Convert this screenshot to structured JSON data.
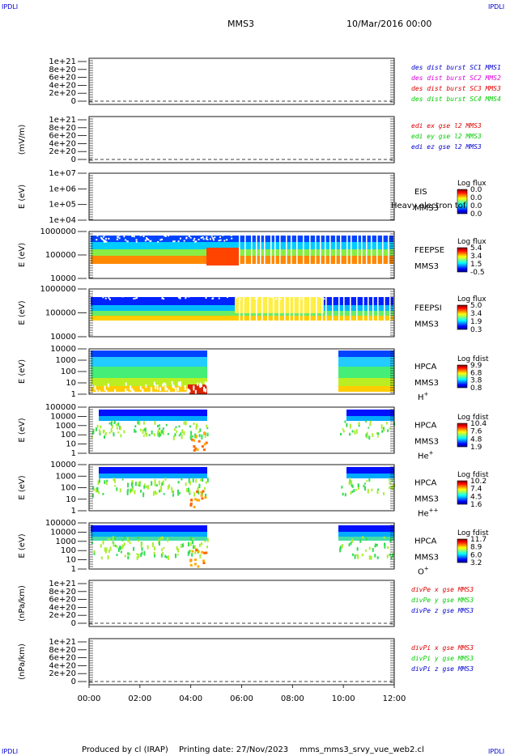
{
  "header": {
    "corner_tl": "IPDLI",
    "corner_tr": "IPDLI",
    "corner_bl": "IPDLI",
    "corner_br": "IPDLI",
    "spacecraft": "MMS3",
    "date": "10/Mar/2016 00:00"
  },
  "footer": {
    "produced": "Produced by cl (IRAP)",
    "printing": "Printing date: 27/Nov/2023",
    "script": "mms_mms3_srvy_vue_web2.cl"
  },
  "colors": {
    "red": "#dd0000",
    "magenta": "#dd00dd",
    "green": "#00cc00",
    "blue": "#0000cc"
  },
  "chart_data": [
    {
      "type": "line",
      "ylabel": "",
      "yticks": [
        "1e+21",
        "8e+20",
        "6e+20",
        "4e+20",
        "2e+20",
        "0"
      ],
      "legend": [
        {
          "text": "des dist burst SC1 MMS1",
          "color": "#0000cc"
        },
        {
          "text": "des dist burst SC2 MMS2",
          "color": "#dd00dd"
        },
        {
          "text": "des dist burst SC3 MMS3",
          "color": "#dd0000"
        },
        {
          "text": "des dist burst SC4 MMS4",
          "color": "#00cc00"
        }
      ]
    },
    {
      "type": "line",
      "ylabel": "(mV/m)",
      "yticks": [
        "1e+21",
        "8e+20",
        "6e+20",
        "4e+20",
        "2e+20",
        "0"
      ],
      "legend": [
        {
          "text": "edi ex gse l2 MMS3",
          "color": "#dd0000"
        },
        {
          "text": "edi ey gse l2 MMS3",
          "color": "#00cc00"
        },
        {
          "text": "edi ez gse l2 MMS3",
          "color": "#0000cc"
        }
      ]
    },
    {
      "type": "heatmap",
      "ylabel": "E (eV)",
      "yticks": [
        "1e+07",
        "1e+06",
        "1e+05",
        "1e+04"
      ],
      "instrument": [
        "EIS",
        "MMS3"
      ],
      "extra_label": "Heavy electron tof",
      "cbar_title": "Log flux",
      "cbar_ticks": [
        "0.0",
        "0.0",
        "0.0",
        "0.0"
      ]
    },
    {
      "type": "heatmap",
      "ylabel": "E (eV)",
      "yticks": [
        "1000000",
        "100000",
        "10000"
      ],
      "instrument": [
        "FEEPSE",
        "MMS3"
      ],
      "cbar_title": "Log flux",
      "cbar_ticks": [
        "5.4",
        "3.4",
        "1.5",
        "-0.5"
      ]
    },
    {
      "type": "heatmap",
      "ylabel": "E (eV)",
      "yticks": [
        "1000000",
        "100000",
        "10000"
      ],
      "instrument": [
        "FEEPSI",
        "MMS3"
      ],
      "cbar_title": "Log flux",
      "cbar_ticks": [
        "5.0",
        "3.4",
        "1.9",
        "0.3"
      ]
    },
    {
      "type": "heatmap",
      "ylabel": "E (eV)",
      "yticks": [
        "10000",
        "1000",
        "100",
        "10",
        "1"
      ],
      "instrument": [
        "HPCA",
        "MMS3"
      ],
      "species": "H",
      "species_sup": "+",
      "cbar_title": "Log fdist",
      "cbar_ticks": [
        "9.9",
        "6.8",
        "3.8",
        "0.8"
      ]
    },
    {
      "type": "heatmap",
      "ylabel": "E (eV)",
      "yticks": [
        "100000",
        "10000",
        "1000",
        "100",
        "10",
        "1"
      ],
      "instrument": [
        "HPCA",
        "MMS3"
      ],
      "species": "He",
      "species_sup": "+",
      "cbar_title": "Log fdist",
      "cbar_ticks": [
        "10.4",
        "7.6",
        "4.8",
        "1.9"
      ]
    },
    {
      "type": "heatmap",
      "ylabel": "E (eV)",
      "yticks": [
        "10000",
        "1000",
        "100",
        "10",
        "1"
      ],
      "instrument": [
        "HPCA",
        "MMS3"
      ],
      "species": "He",
      "species_sup": "++",
      "cbar_title": "Log fdist",
      "cbar_ticks": [
        "10.2",
        "7.4",
        "4.5",
        "1.6"
      ]
    },
    {
      "type": "heatmap",
      "ylabel": "E (eV)",
      "yticks": [
        "100000",
        "10000",
        "1000",
        "100",
        "10",
        "1"
      ],
      "instrument": [
        "HPCA",
        "MMS3"
      ],
      "species": "O",
      "species_sup": "+",
      "cbar_title": "Log fdist",
      "cbar_ticks": [
        "11.7",
        "8.9",
        "6.0",
        "3.2"
      ]
    },
    {
      "type": "line",
      "ylabel": "(nPa/km)",
      "yticks": [
        "1e+21",
        "8e+20",
        "6e+20",
        "4e+20",
        "2e+20",
        "0"
      ],
      "legend": [
        {
          "text": "divPe x gse MMS3",
          "color": "#dd0000"
        },
        {
          "text": "divPe y gse MMS3",
          "color": "#00cc00"
        },
        {
          "text": "divPe z gse MMS3",
          "color": "#0000cc"
        }
      ]
    },
    {
      "type": "line",
      "ylabel": "(nPa/km)",
      "yticks": [
        "1e+21",
        "8e+20",
        "6e+20",
        "4e+20",
        "2e+20",
        "0"
      ],
      "legend": [
        {
          "text": "divPi x gse MMS3",
          "color": "#dd0000"
        },
        {
          "text": "divPi y gse MMS3",
          "color": "#00cc00"
        },
        {
          "text": "divPi z gse MMS3",
          "color": "#0000cc"
        }
      ]
    }
  ],
  "xaxis": {
    "ticks": [
      "00:00",
      "02:00",
      "04:00",
      "06:00",
      "08:00",
      "10:00",
      "12:00"
    ]
  }
}
